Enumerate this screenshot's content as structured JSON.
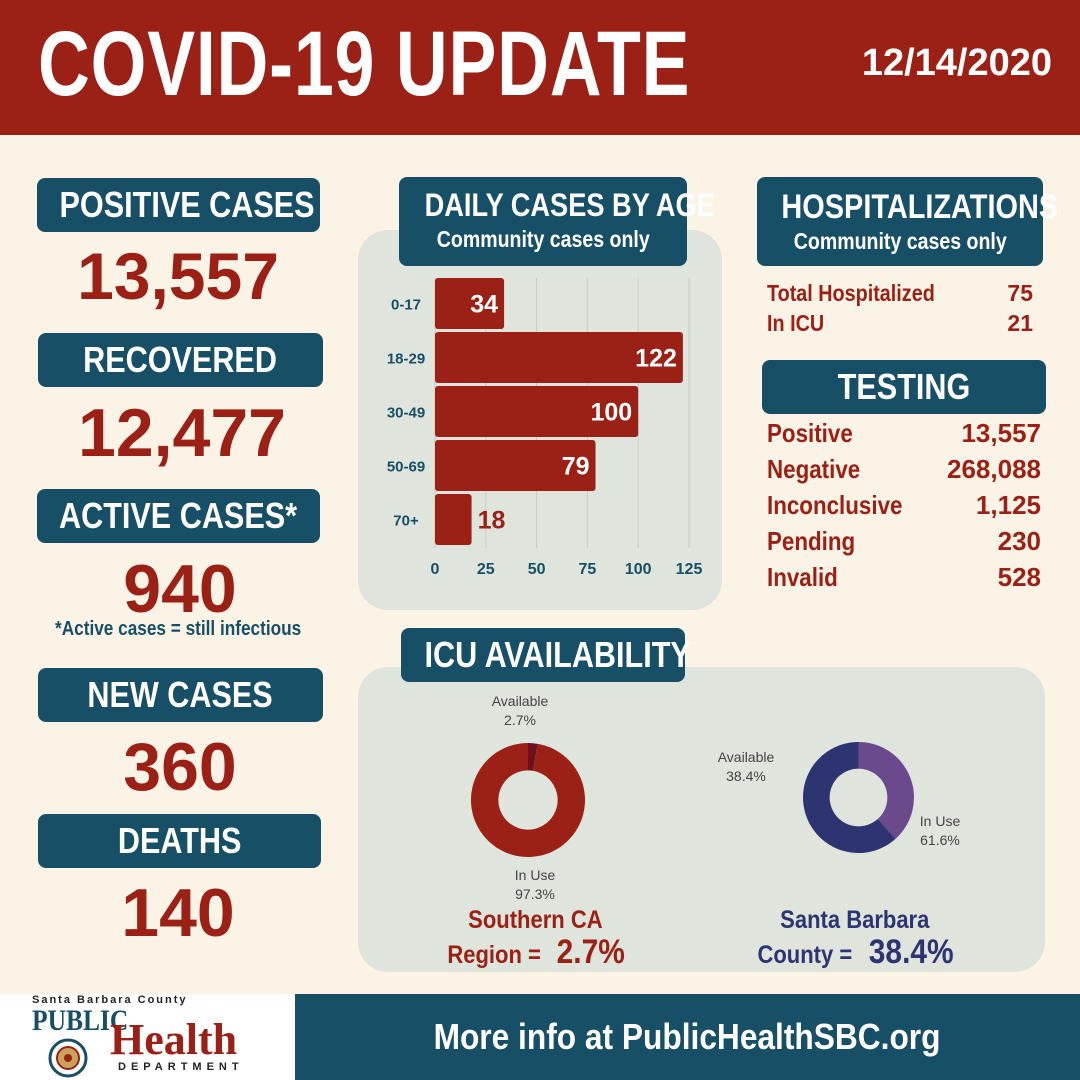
{
  "header": {
    "title": "COVID-19 UPDATE",
    "date": "12/14/2020"
  },
  "stats": {
    "positive": {
      "label": "POSITIVE CASES",
      "value": "13,557"
    },
    "recovered": {
      "label": "RECOVERED",
      "value": "12,477"
    },
    "active": {
      "label": "ACTIVE CASES*",
      "value": "940",
      "note": "*Active cases = still infectious"
    },
    "new_cases": {
      "label": "NEW CASES",
      "value": "360"
    },
    "deaths": {
      "label": "DEATHS",
      "value": "140"
    }
  },
  "age_chart_box": {
    "title": "DAILY CASES BY AGE",
    "subtitle": "Community cases only"
  },
  "hospitalizations": {
    "title": "HOSPITALIZATIONS",
    "subtitle": "Community cases only",
    "rows": [
      {
        "label": "Total Hospitalized",
        "value": "75"
      },
      {
        "label": "In ICU",
        "value": "21"
      }
    ]
  },
  "testing": {
    "title": "TESTING",
    "rows": [
      {
        "label": "Positive",
        "value": "13,557"
      },
      {
        "label": "Negative",
        "value": "268,088"
      },
      {
        "label": "Inconclusive",
        "value": "1,125"
      },
      {
        "label": "Pending",
        "value": "230"
      },
      {
        "label": "Invalid",
        "value": "528"
      }
    ]
  },
  "icu": {
    "title": "ICU AVAILABILITY",
    "southern": {
      "caption_line1": "Southern CA",
      "caption_line2_prefix": "Region =",
      "caption_pct": "2.7%",
      "available_label": "Available",
      "available_pct": "2.7%",
      "inuse_label": "In Use",
      "inuse_pct": "97.3%",
      "available_value": 2.7,
      "colors": {
        "inuse": "#9b2116",
        "available": "#6e0f1c"
      }
    },
    "sbc": {
      "caption_line1": "Santa Barbara",
      "caption_line2_prefix": "County =",
      "caption_pct": "38.4%",
      "available_label": "Available",
      "available_pct": "38.4%",
      "inuse_label": "In Use",
      "inuse_pct": "61.6%",
      "available_value": 38.4,
      "colors": {
        "inuse": "#2e3472",
        "available": "#6a4a8c"
      }
    }
  },
  "footer": {
    "logo_top": "Santa Barbara County",
    "logo_public": "PUBLIC",
    "logo_health": "Health",
    "logo_department": "DEPARTMENT",
    "more_info": "More info at PublicHealthSBC.org"
  },
  "colors": {
    "header_red": "#9b2116",
    "teal": "#174f66",
    "cream": "#fbf3e6",
    "panel": "#dfe4dc"
  },
  "chart_data": [
    {
      "type": "bar",
      "orientation": "horizontal",
      "categories": [
        "0-17",
        "18-29",
        "30-49",
        "50-69",
        "70+"
      ],
      "values": [
        34,
        122,
        100,
        79,
        18
      ],
      "xticks": [
        0,
        25,
        50,
        75,
        100,
        125
      ],
      "xlim": [
        0,
        125
      ],
      "grid": true,
      "color": "#9b2116"
    },
    {
      "type": "pie",
      "labels": [
        "Available",
        "In Use"
      ],
      "values": [
        2.7,
        97.3
      ]
    },
    {
      "type": "pie",
      "labels": [
        "Available",
        "In Use"
      ],
      "values": [
        38.4,
        61.6
      ]
    }
  ]
}
